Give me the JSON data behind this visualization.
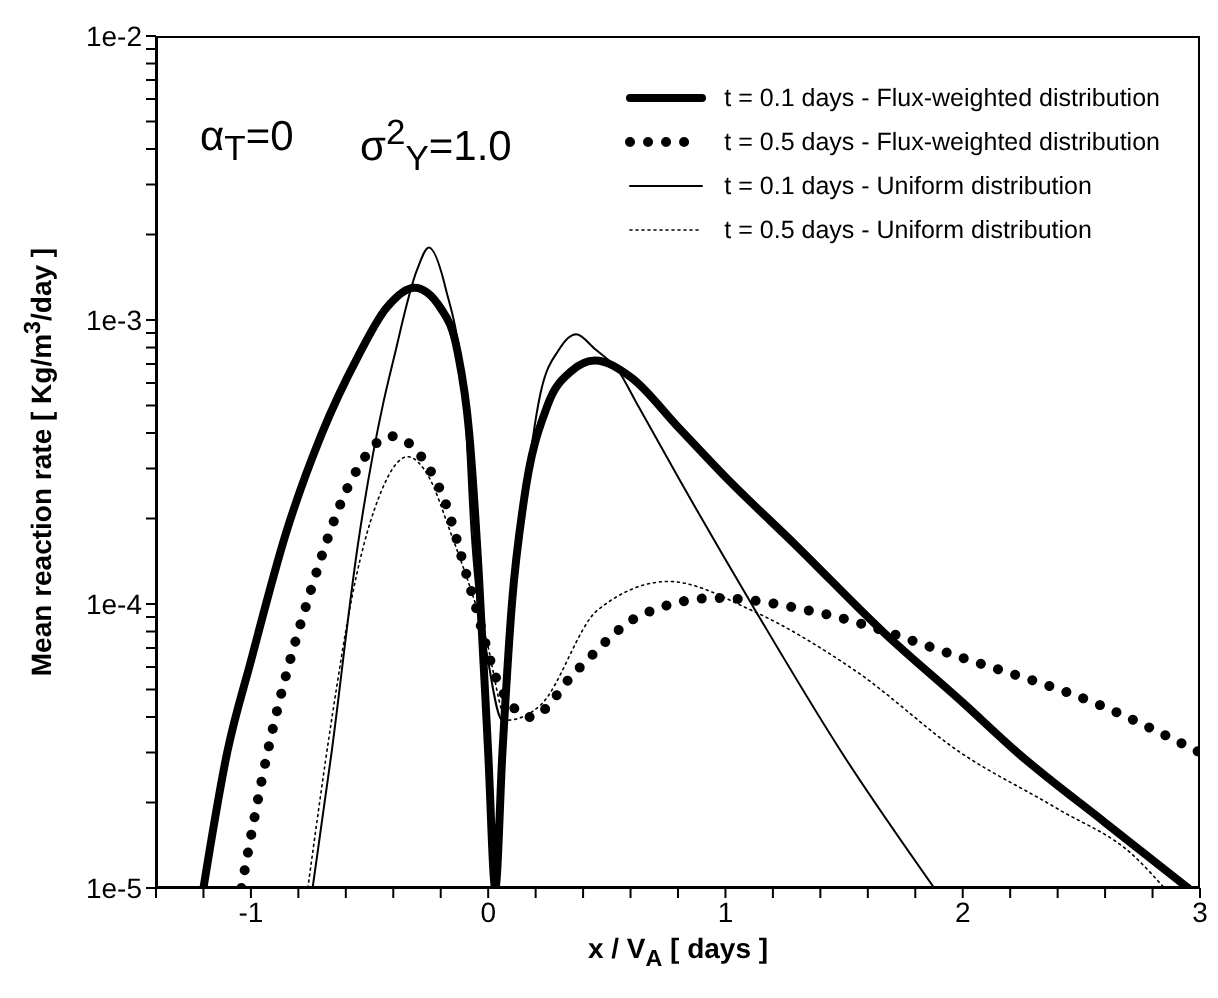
{
  "chart_data": {
    "type": "line",
    "xlabel": "x / V$_{A}$ [ days ]",
    "ylabel": "Mean reaction rate [ Kg/m$^{3}$/day ]",
    "annotations": [
      "α$_{T}$=0",
      "σ$^{2}$$_{Y}$=1.0"
    ],
    "log": "y",
    "grid": false,
    "legend": "top right",
    "marker": "none",
    "xlim": [
      -1.4,
      3
    ],
    "xticks": [
      {
        "value": -1.4,
        "label": null
      },
      {
        "value": -1.2,
        "label": null
      },
      -1,
      {
        "value": -0.8,
        "label": null
      },
      {
        "value": -0.6,
        "label": null
      },
      {
        "value": -0.4,
        "label": null
      },
      {
        "value": -0.2,
        "label": null
      },
      0,
      {
        "value": 0.2,
        "label": null
      },
      {
        "value": 0.4,
        "label": null
      },
      {
        "value": 0.6,
        "label": null
      },
      {
        "value": 0.8,
        "label": null
      },
      1,
      {
        "value": 1.2,
        "label": null
      },
      {
        "value": 1.4,
        "label": null
      },
      {
        "value": 1.6,
        "label": null
      },
      {
        "value": 1.8,
        "label": null
      },
      2,
      {
        "value": 2.2,
        "label": null
      },
      {
        "value": 2.4,
        "label": null
      },
      {
        "value": 2.6,
        "label": null
      },
      {
        "value": 2.8,
        "label": null
      },
      3
    ],
    "ylim": [
      1e-05,
      0.01
    ],
    "yticks": [
      {
        "value": 1e-05,
        "label": "1e-5"
      },
      {
        "value": 2e-05,
        "label": null
      },
      {
        "value": 3e-05,
        "label": null
      },
      {
        "value": 4e-05,
        "label": null
      },
      {
        "value": 5e-05,
        "label": null
      },
      {
        "value": 6e-05,
        "label": null
      },
      {
        "value": 7e-05,
        "label": null
      },
      {
        "value": 8e-05,
        "label": null
      },
      {
        "value": 9e-05,
        "label": null
      },
      {
        "value": 0.0001,
        "label": "1e-4"
      },
      {
        "value": 0.0002,
        "label": null
      },
      {
        "value": 0.0003,
        "label": null
      },
      {
        "value": 0.0004,
        "label": null
      },
      {
        "value": 0.0005,
        "label": null
      },
      {
        "value": 0.0006,
        "label": null
      },
      {
        "value": 0.0007,
        "label": null
      },
      {
        "value": 0.0008,
        "label": null
      },
      {
        "value": 0.0009,
        "label": null
      },
      {
        "value": 0.001,
        "label": "1e-3"
      },
      {
        "value": 0.002,
        "label": null
      },
      {
        "value": 0.003,
        "label": null
      },
      {
        "value": 0.004,
        "label": null
      },
      {
        "value": 0.005,
        "label": null
      },
      {
        "value": 0.006,
        "label": null
      },
      {
        "value": 0.007,
        "label": null
      },
      {
        "value": 0.008,
        "label": null
      },
      {
        "value": 0.009,
        "label": null
      },
      {
        "value": 0.01,
        "label": "1e-2"
      }
    ],
    "series": [
      {
        "name": "t = 0.1 days - Flux-weighted distribution",
        "color": "#000000",
        "line_style": "solid",
        "x": [
          -1.2,
          -1.1,
          -1.0,
          -0.85,
          -0.7,
          -0.55,
          -0.43,
          -0.31,
          -0.2,
          -0.13,
          -0.08,
          -0.04,
          0.0,
          0.03,
          0.06,
          0.1,
          0.15,
          0.25,
          0.35,
          0.45,
          0.6,
          0.8,
          1.0,
          1.3,
          1.67,
          2.0,
          2.23,
          2.6,
          2.95
        ],
        "values": [
          1e-05,
          3e-05,
          6.3e-05,
          0.00018,
          0.0004,
          0.00074,
          0.0011,
          0.0013,
          0.0011,
          0.00078,
          0.0004,
          0.00013,
          3e-05,
          1e-05,
          3e-05,
          0.0001,
          0.00023,
          0.0005,
          0.00066,
          0.00072,
          0.00063,
          0.00042,
          0.00028,
          0.00016,
          7.9e-05,
          4.5e-05,
          3e-05,
          1.7e-05,
          1e-05
        ]
      },
      {
        "name": "t = 0.5 days - Flux-weighted distribution",
        "color": "#000000",
        "line_style": "dotted",
        "x": [
          -1.04,
          -0.93,
          -0.75,
          -0.57,
          -0.41,
          -0.2,
          -0.07,
          0.05,
          0.18,
          0.37,
          0.64,
          0.96,
          1.4,
          1.99,
          2.58,
          3.0
        ],
        "values": [
          1e-05,
          3e-05,
          0.00011,
          0.00028,
          0.00039,
          0.00025,
          0.00011,
          5.1e-05,
          4e-05,
          5.8e-05,
          9.1e-05,
          0.000105,
          9.3e-05,
          6.5e-05,
          4.4e-05,
          3e-05
        ]
      },
      {
        "name": "t = 0.1 days - Uniform distribution",
        "color": "#000000",
        "line_style": "solid",
        "x": [
          -0.74,
          -0.66,
          -0.55,
          -0.44,
          -0.4,
          -0.3,
          -0.25,
          -0.18,
          -0.1,
          -0.07,
          0.0,
          0.06,
          0.12,
          0.22,
          0.3,
          0.37,
          0.45,
          0.55,
          0.62,
          0.8,
          1.11,
          1.49,
          1.88
        ],
        "values": [
          1e-05,
          3e-05,
          0.00016,
          0.00052,
          0.00072,
          0.0015,
          0.0018,
          0.0013,
          0.00052,
          0.00018,
          6.3e-05,
          3.9e-05,
          0.00013,
          0.00055,
          0.00079,
          0.00089,
          0.00079,
          0.00066,
          0.00052,
          0.00028,
          0.0001,
          3e-05,
          1e-05
        ]
      },
      {
        "name": "t = 0.5 days - Uniform distribution",
        "color": "#000000",
        "line_style": "dotted",
        "x": [
          -0.76,
          -0.66,
          -0.57,
          -0.45,
          -0.34,
          -0.25,
          -0.16,
          -0.01,
          0.08,
          0.22,
          0.46,
          0.76,
          1.11,
          1.55,
          1.99,
          2.4,
          2.72,
          2.85
        ],
        "values": [
          1e-05,
          3.9e-05,
          0.00011,
          0.00025,
          0.00033,
          0.00028,
          0.00018,
          7.6e-05,
          3.9e-05,
          4.4e-05,
          9.5e-05,
          0.00012,
          9.5e-05,
          5.8e-05,
          3e-05,
          1.9e-05,
          1.3e-05,
          1e-05
        ]
      }
    ]
  }
}
